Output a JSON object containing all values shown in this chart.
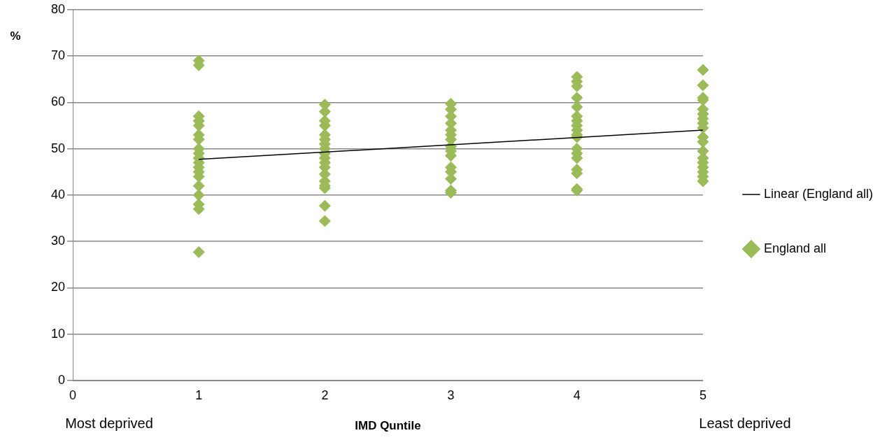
{
  "chart_data": {
    "type": "scatter",
    "xlabel": "IMD Quntile",
    "ylabel": "%",
    "xlim": [
      0,
      5
    ],
    "xticks": [
      0,
      1,
      2,
      3,
      4,
      5
    ],
    "ylim": [
      0,
      80
    ],
    "yticks": [
      0,
      10,
      20,
      30,
      40,
      50,
      60,
      70,
      80
    ],
    "grid": "y",
    "legend": "right",
    "marker": "diamond",
    "annotations": [
      "Most deprived",
      "Least deprived"
    ],
    "series": [
      {
        "name": "England all",
        "color": "#9bbb59",
        "x": [
          1,
          1,
          1,
          1,
          1,
          1,
          1,
          1,
          1,
          1,
          1,
          1,
          1,
          1,
          1,
          1,
          1,
          1,
          1,
          2,
          2,
          2,
          2,
          2,
          2,
          2,
          2,
          2,
          2,
          2,
          2,
          2,
          2,
          2,
          2,
          2,
          2,
          3,
          3,
          3,
          3,
          3,
          3,
          3,
          3,
          3,
          3,
          3,
          3,
          3,
          3,
          3,
          4,
          4,
          4,
          4,
          4,
          4,
          4,
          4,
          4,
          4,
          4,
          4,
          4,
          4,
          4,
          4,
          4,
          4,
          5,
          5,
          5,
          5,
          5,
          5,
          5,
          5,
          5,
          5,
          5,
          5,
          5,
          5,
          5,
          5,
          5,
          5
        ],
        "values": [
          69,
          68,
          57,
          56,
          55,
          53,
          52,
          50,
          49,
          48,
          47,
          46,
          45,
          44,
          42,
          40,
          38,
          37,
          27.7,
          59.5,
          58,
          56,
          55,
          53,
          52,
          51,
          50,
          49,
          48,
          47,
          46,
          44.5,
          43,
          42,
          41.5,
          37.7,
          34.4,
          59.7,
          58.5,
          57,
          55.5,
          54,
          53,
          52,
          50.5,
          49.5,
          48.5,
          46,
          45,
          43.5,
          41,
          40.5,
          65.5,
          64.5,
          63.5,
          61,
          59,
          57,
          56,
          55,
          54,
          53,
          52.5,
          50,
          49,
          48,
          45.5,
          44.7,
          41.3,
          41,
          67,
          63.7,
          61,
          60.5,
          58.5,
          57.5,
          56.5,
          55.5,
          54.5,
          52.5,
          51.5,
          49.5,
          48,
          47,
          46,
          45,
          44,
          43
        ]
      },
      {
        "name": "Linear (England all)",
        "type": "line",
        "color": "#000000",
        "x": [
          1,
          5
        ],
        "values": [
          47.7,
          54
        ],
        "marker": "none"
      }
    ]
  }
}
